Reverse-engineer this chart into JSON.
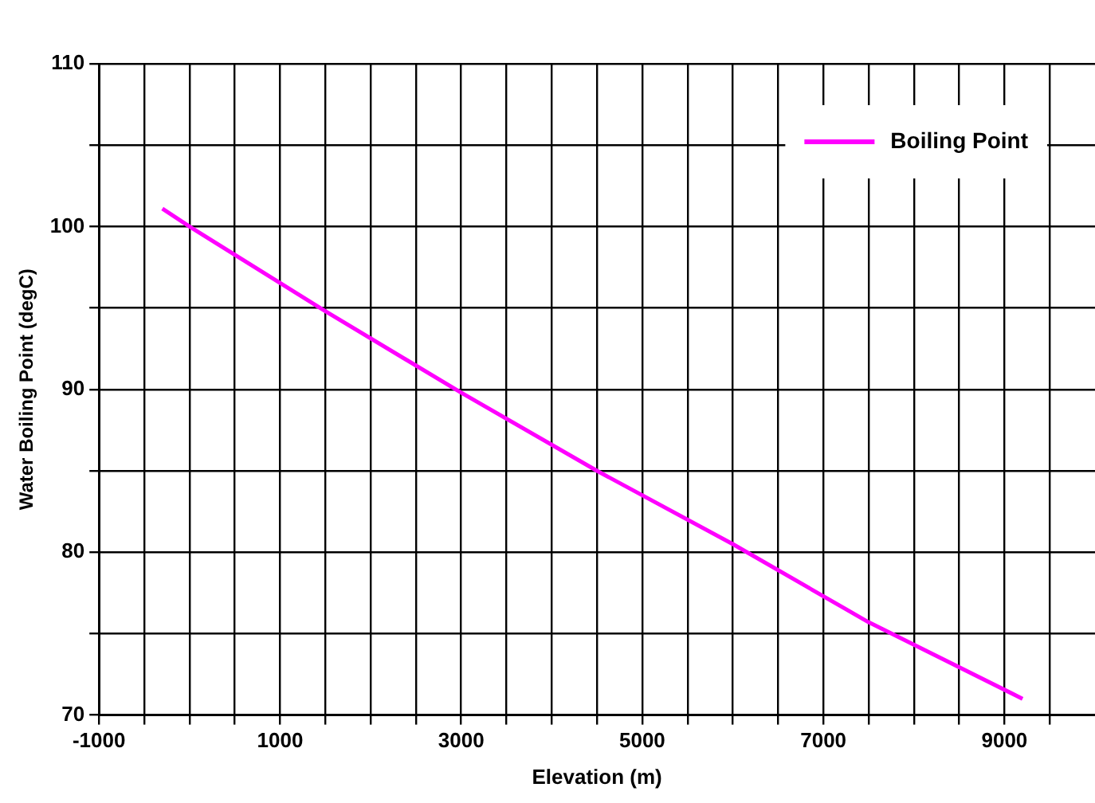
{
  "chart_data": {
    "type": "line",
    "xlabel": "Elevation (m)",
    "ylabel": "Water Boiling Point (degC)",
    "x": [
      -300,
      0,
      1500,
      3000,
      4500,
      6000,
      7500,
      9200
    ],
    "series": [
      {
        "name": "Boiling Point",
        "color": "#ff00ff",
        "values": [
          101.1,
          100.0,
          94.8,
          89.8,
          85.0,
          80.5,
          75.7,
          71.0
        ]
      }
    ],
    "xlim": [
      -1000,
      10000
    ],
    "xticks": [
      -1000,
      {
        "value": -500,
        "label": null
      },
      {
        "value": 0,
        "label": null
      },
      {
        "value": 500,
        "label": null
      },
      1000,
      {
        "value": 1500,
        "label": null
      },
      {
        "value": 2000,
        "label": null
      },
      {
        "value": 2500,
        "label": null
      },
      3000,
      {
        "value": 3500,
        "label": null
      },
      {
        "value": 4000,
        "label": null
      },
      {
        "value": 4500,
        "label": null
      },
      5000,
      {
        "value": 5500,
        "label": null
      },
      {
        "value": 6000,
        "label": null
      },
      {
        "value": 6500,
        "label": null
      },
      7000,
      {
        "value": 7500,
        "label": null
      },
      {
        "value": 8000,
        "label": null
      },
      {
        "value": 8500,
        "label": null
      },
      9000,
      {
        "value": 9500,
        "label": null
      }
    ],
    "ylim": [
      70,
      110
    ],
    "yticks": [
      70,
      {
        "value": 75,
        "label": null
      },
      80,
      {
        "value": 85,
        "label": null
      },
      90,
      {
        "value": 95,
        "label": null
      },
      100,
      {
        "value": 105,
        "label": null
      },
      110
    ],
    "grid": true,
    "legend": "top right",
    "marker": "none",
    "line_style": "solid"
  }
}
